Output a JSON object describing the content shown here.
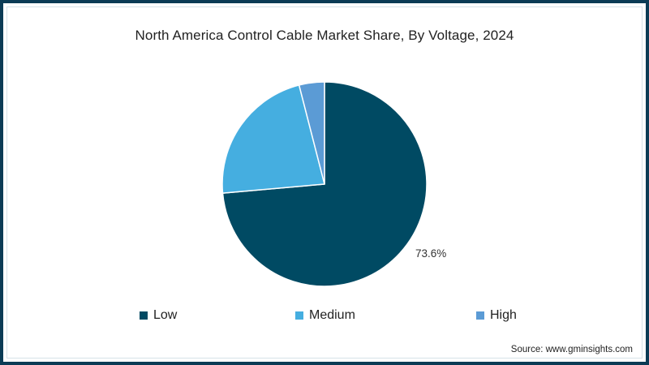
{
  "chart_data": {
    "type": "pie",
    "title": "North America Control Cable Market Share, By Voltage, 2024",
    "categories": [
      "Low",
      "Medium",
      "High"
    ],
    "values": [
      73.6,
      22.4,
      4.0
    ],
    "colors": [
      "#004a63",
      "#45aee0",
      "#5b9bd5"
    ],
    "data_labels": [
      {
        "category": "Low",
        "text": "73.6%"
      }
    ],
    "start_angle_deg": 0,
    "direction": "clockwise",
    "legend_position": "bottom",
    "source": "Source: www.gminsights.com"
  },
  "title": "North America Control Cable Market Share, By Voltage, 2024",
  "label_low": "73.6%",
  "legend": [
    {
      "label": "Low",
      "color": "#004a63"
    },
    {
      "label": "Medium",
      "color": "#45aee0"
    },
    {
      "label": "High",
      "color": "#5b9bd5"
    }
  ],
  "source": "Source: www.gminsights.com",
  "colors": {
    "border": "#0b3b55"
  }
}
